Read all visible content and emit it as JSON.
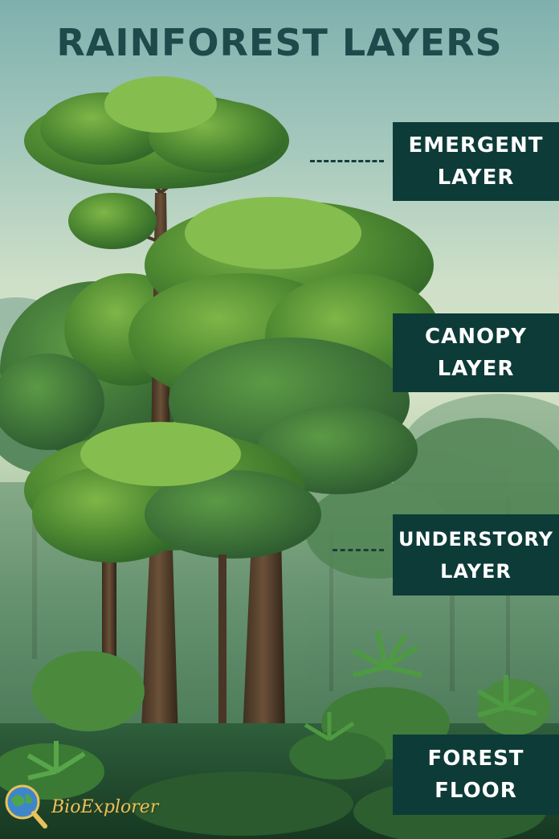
{
  "title": "RAINFOREST LAYERS",
  "layers": [
    {
      "line1": "EMERGENT",
      "line2": "LAYER"
    },
    {
      "line1": "CANOPY",
      "line2": "LAYER"
    },
    {
      "line1": "UNDERSTORY",
      "line2": "LAYER"
    },
    {
      "line1": "FOREST",
      "line2": "FLOOR"
    }
  ],
  "logo": {
    "text": "BioExplorer",
    "icon": "globe-magnifier-icon"
  },
  "colors": {
    "title": "#1f4a4b",
    "label_bg": "#0d3b38",
    "label_text": "#ffffff",
    "logo_text": "#e8c25a"
  }
}
